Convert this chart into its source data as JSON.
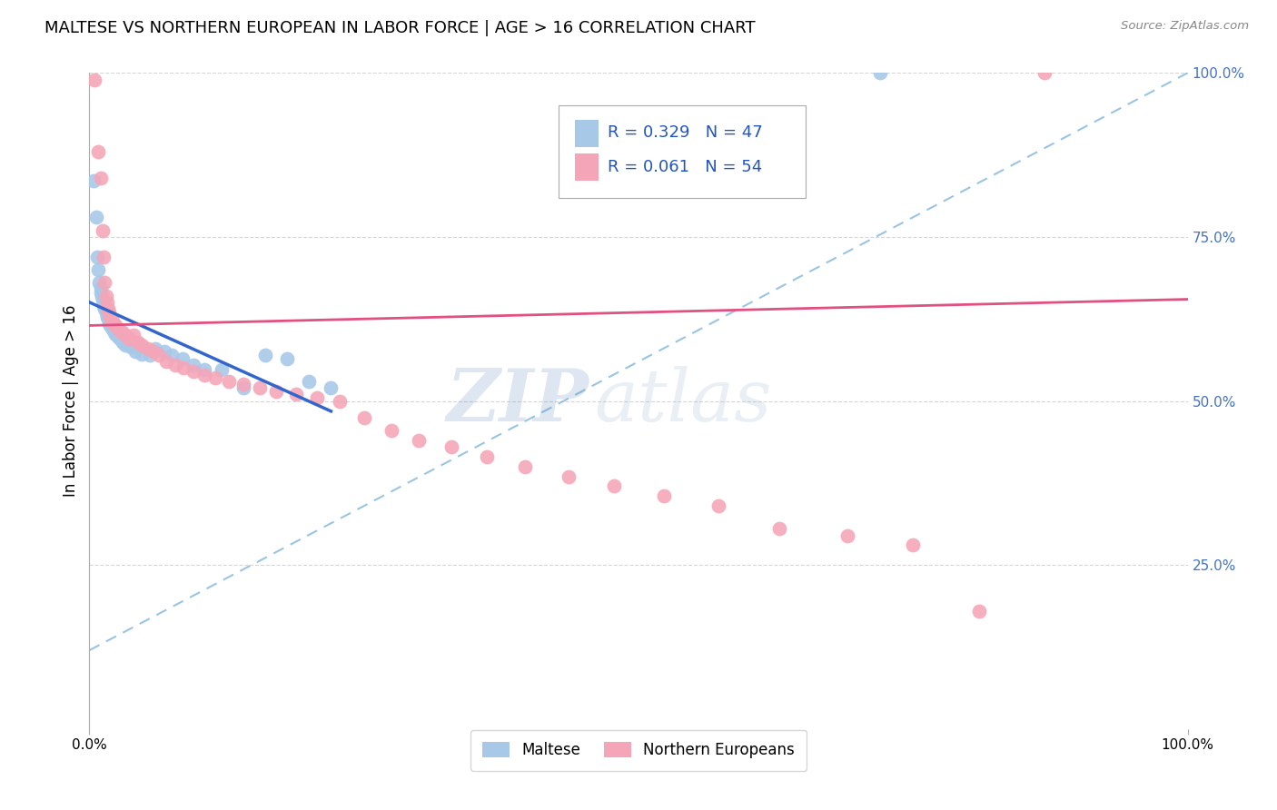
{
  "title": "MALTESE VS NORTHERN EUROPEAN IN LABOR FORCE | AGE > 16 CORRELATION CHART",
  "source": "Source: ZipAtlas.com",
  "ylabel": "In Labor Force | Age > 16",
  "watermark_zip": "ZIP",
  "watermark_atlas": "atlas",
  "series": [
    {
      "name": "Maltese",
      "R": 0.329,
      "N": 47,
      "color": "#a8c8e8",
      "line_color": "#3366cc",
      "x": [
        0.004,
        0.006,
        0.007,
        0.008,
        0.009,
        0.01,
        0.01,
        0.011,
        0.012,
        0.013,
        0.013,
        0.014,
        0.015,
        0.015,
        0.016,
        0.016,
        0.017,
        0.018,
        0.018,
        0.019,
        0.02,
        0.021,
        0.022,
        0.023,
        0.024,
        0.025,
        0.026,
        0.028,
        0.03,
        0.033,
        0.038,
        0.042,
        0.048,
        0.055,
        0.06,
        0.068,
        0.075,
        0.085,
        0.095,
        0.105,
        0.12,
        0.14,
        0.16,
        0.18,
        0.2,
        0.22,
        0.72
      ],
      "y": [
        0.835,
        0.78,
        0.72,
        0.7,
        0.68,
        0.672,
        0.665,
        0.66,
        0.655,
        0.65,
        0.645,
        0.64,
        0.638,
        0.635,
        0.63,
        0.628,
        0.625,
        0.622,
        0.618,
        0.615,
        0.612,
        0.61,
        0.608,
        0.605,
        0.602,
        0.6,
        0.598,
        0.595,
        0.59,
        0.585,
        0.582,
        0.575,
        0.572,
        0.57,
        0.58,
        0.575,
        0.57,
        0.565,
        0.555,
        0.548,
        0.548,
        0.52,
        0.57,
        0.565,
        0.53,
        0.52,
        1.0
      ]
    },
    {
      "name": "Northern Europeans",
      "R": 0.061,
      "N": 54,
      "color": "#f4a6b8",
      "line_color": "#e05080",
      "x": [
        0.005,
        0.008,
        0.01,
        0.012,
        0.013,
        0.014,
        0.015,
        0.016,
        0.017,
        0.018,
        0.019,
        0.02,
        0.021,
        0.022,
        0.024,
        0.026,
        0.028,
        0.03,
        0.033,
        0.036,
        0.04,
        0.044,
        0.048,
        0.053,
        0.058,
        0.063,
        0.07,
        0.078,
        0.086,
        0.095,
        0.105,
        0.115,
        0.127,
        0.14,
        0.155,
        0.17,
        0.188,
        0.207,
        0.228,
        0.25,
        0.275,
        0.3,
        0.33,
        0.362,
        0.397,
        0.436,
        0.478,
        0.523,
        0.573,
        0.628,
        0.69,
        0.75,
        0.81,
        0.87
      ],
      "y": [
        0.99,
        0.88,
        0.84,
        0.76,
        0.72,
        0.68,
        0.66,
        0.65,
        0.64,
        0.635,
        0.63,
        0.625,
        0.62,
        0.618,
        0.615,
        0.61,
        0.608,
        0.605,
        0.6,
        0.595,
        0.6,
        0.59,
        0.585,
        0.58,
        0.575,
        0.57,
        0.56,
        0.555,
        0.55,
        0.545,
        0.54,
        0.535,
        0.53,
        0.525,
        0.52,
        0.515,
        0.51,
        0.505,
        0.5,
        0.475,
        0.455,
        0.44,
        0.43,
        0.415,
        0.4,
        0.385,
        0.37,
        0.355,
        0.34,
        0.305,
        0.295,
        0.28,
        0.18,
        1.0
      ]
    }
  ],
  "xlim": [
    0.0,
    1.0
  ],
  "ylim": [
    0.0,
    1.0
  ],
  "yticks": [
    0.25,
    0.5,
    0.75,
    1.0
  ],
  "ytick_labels": [
    "25.0%",
    "50.0%",
    "75.0%",
    "100.0%"
  ],
  "grid_color": "#cccccc",
  "background_color": "#ffffff",
  "title_fontsize": 13,
  "axis_label_fontsize": 12,
  "tick_fontsize": 11,
  "legend_color": "#2255bb",
  "dashed_line_color": "#88bbdd",
  "dashed_line_start_x": 0.0,
  "dashed_line_start_y": 0.12,
  "dashed_line_end_x": 1.0,
  "dashed_line_end_y": 1.0
}
